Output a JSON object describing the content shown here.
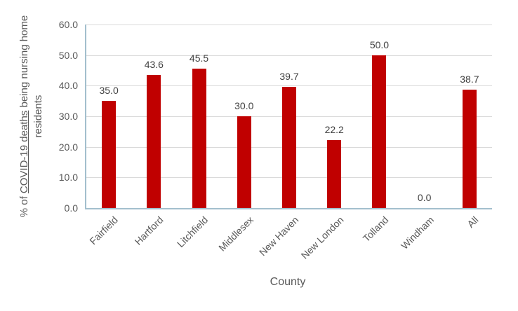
{
  "chart_data": {
    "type": "bar",
    "title": "",
    "categories": [
      "Fairfield",
      "Hartford",
      "Litchfield",
      "Middlesex",
      "New Haven",
      "New London",
      "Tolland",
      "Windham",
      "All"
    ],
    "values": [
      35.0,
      43.6,
      45.5,
      30.0,
      39.7,
      22.2,
      50.0,
      0.0,
      38.7
    ],
    "data_labels": [
      "35.0",
      "43.6",
      "45.5",
      "30.0",
      "39.7",
      "22.2",
      "50.0",
      "0.0",
      "38.7"
    ],
    "xlabel": "County",
    "ylabel": "% of COVID-19 deaths being nursing home residents",
    "ylabel_line1_prefix": "% of ",
    "ylabel_line1_underlined": "COVID-19 deaths",
    "ylabel_line1_suffix": " being nursing home",
    "ylabel_line2": "residents",
    "ylim": [
      0,
      60
    ],
    "ytick_step": 10,
    "ytick_labels": [
      "0.0",
      "10.0",
      "20.0",
      "30.0",
      "40.0",
      "50.0",
      "60.0"
    ],
    "grid": true,
    "legend_position": "none",
    "colors": {
      "bar": "#C00000",
      "axis_line": "#A3BFCD",
      "gridline": "#D9D9D9",
      "tick_text": "#595959",
      "label_text": "#404040",
      "background": "#FFFFFF"
    }
  }
}
